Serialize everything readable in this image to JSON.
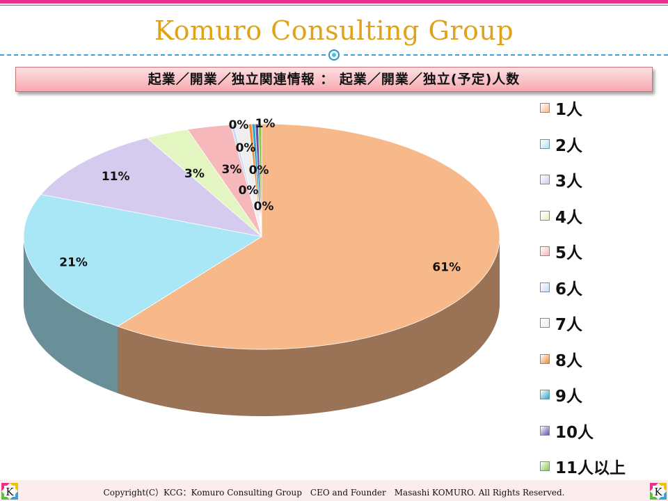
{
  "header": {
    "brand": "Komuro Consulting Group",
    "banner": "起業／開業／独立関連情報 ： 起業／開業／独立(予定)人数"
  },
  "colors": {
    "accent": "#e8308c",
    "brand": "#e0a21a",
    "rule": "#3aa0d8"
  },
  "chart_data": {
    "type": "pie",
    "legend": "right",
    "categories": [
      "1人",
      "2人",
      "3人",
      "4人",
      "5人",
      "6人",
      "7人",
      "8人",
      "9人",
      "10人",
      "11人以上"
    ],
    "values": [
      61,
      21,
      11,
      3,
      3,
      0,
      1,
      0,
      0,
      0,
      0
    ],
    "labels": [
      "61%",
      "21%",
      "11%",
      "3%",
      "3%",
      "0%",
      "1%",
      "0%",
      "0%",
      "0%",
      "0%"
    ],
    "colors": [
      "#f8b98a",
      "#a9e6f6",
      "#d5cbee",
      "#e3f6c2",
      "#f7b8bc",
      "#c7dcf7",
      "#eeeeee",
      "#f28a30",
      "#33a6c8",
      "#6a4fa8",
      "#8cc84b"
    ]
  },
  "footer": {
    "copyright": "Copyright(C）KCG：Komuro Consulting Group　CEO and Founder　Masashi KOMURO. All Rights Reserved.",
    "logo_letter": "K"
  }
}
